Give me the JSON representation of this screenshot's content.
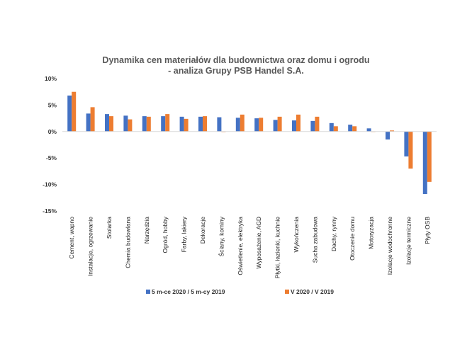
{
  "chart_data": {
    "type": "bar",
    "title_lines": [
      "Dynamika cen materiałów dla budownictwa oraz domu i ogrodu",
      "- analiza Grupy PSB Handel S.A."
    ],
    "xlabel": "",
    "ylabel": "",
    "ylim": [
      -15,
      10
    ],
    "yticks": [
      10,
      5,
      0,
      -5,
      -10,
      -15
    ],
    "ytick_labels": [
      "10%",
      "5%",
      "0%",
      "-5%",
      "-10%",
      "-15%"
    ],
    "grid": false,
    "legend_position": "bottom",
    "categories": [
      "Cement, wapno",
      "Instalacje, ogrzewanie",
      "Stolarka",
      "Chemia budowlana",
      "Narzędzia",
      "Ogród, hobby",
      "Farby, lakiery",
      "Dekoracje",
      "Ściany, kominy",
      "Oświetlenie, elektryka",
      "Wyposażenie, AGD",
      "Płytki, łazienki, kuchnie",
      "Wykończenia",
      "Sucha zabudowa",
      "Dachy, rynny",
      "Otoczenie domu",
      "Motoryzacja",
      "Izolacje wodochronne",
      "Izolacje termiczne",
      "Płyty OSB"
    ],
    "series": [
      {
        "name": "5 m-ce 2020 / 5 m-cy 2019",
        "color": "#4472C4",
        "values": [
          6.8,
          3.4,
          3.3,
          3.0,
          2.9,
          2.9,
          2.8,
          2.8,
          2.7,
          2.6,
          2.5,
          2.2,
          2.1,
          2.0,
          1.6,
          1.3,
          0.6,
          -1.5,
          -4.7,
          -11.8
        ]
      },
      {
        "name": "V 2020 / V 2019",
        "color": "#ED7D31",
        "values": [
          7.5,
          4.6,
          2.9,
          2.3,
          2.8,
          3.3,
          2.4,
          2.9,
          -0.1,
          3.2,
          2.6,
          2.8,
          3.2,
          2.8,
          1.0,
          1.0,
          0.0,
          0.2,
          -7.0,
          -9.5
        ]
      }
    ]
  }
}
